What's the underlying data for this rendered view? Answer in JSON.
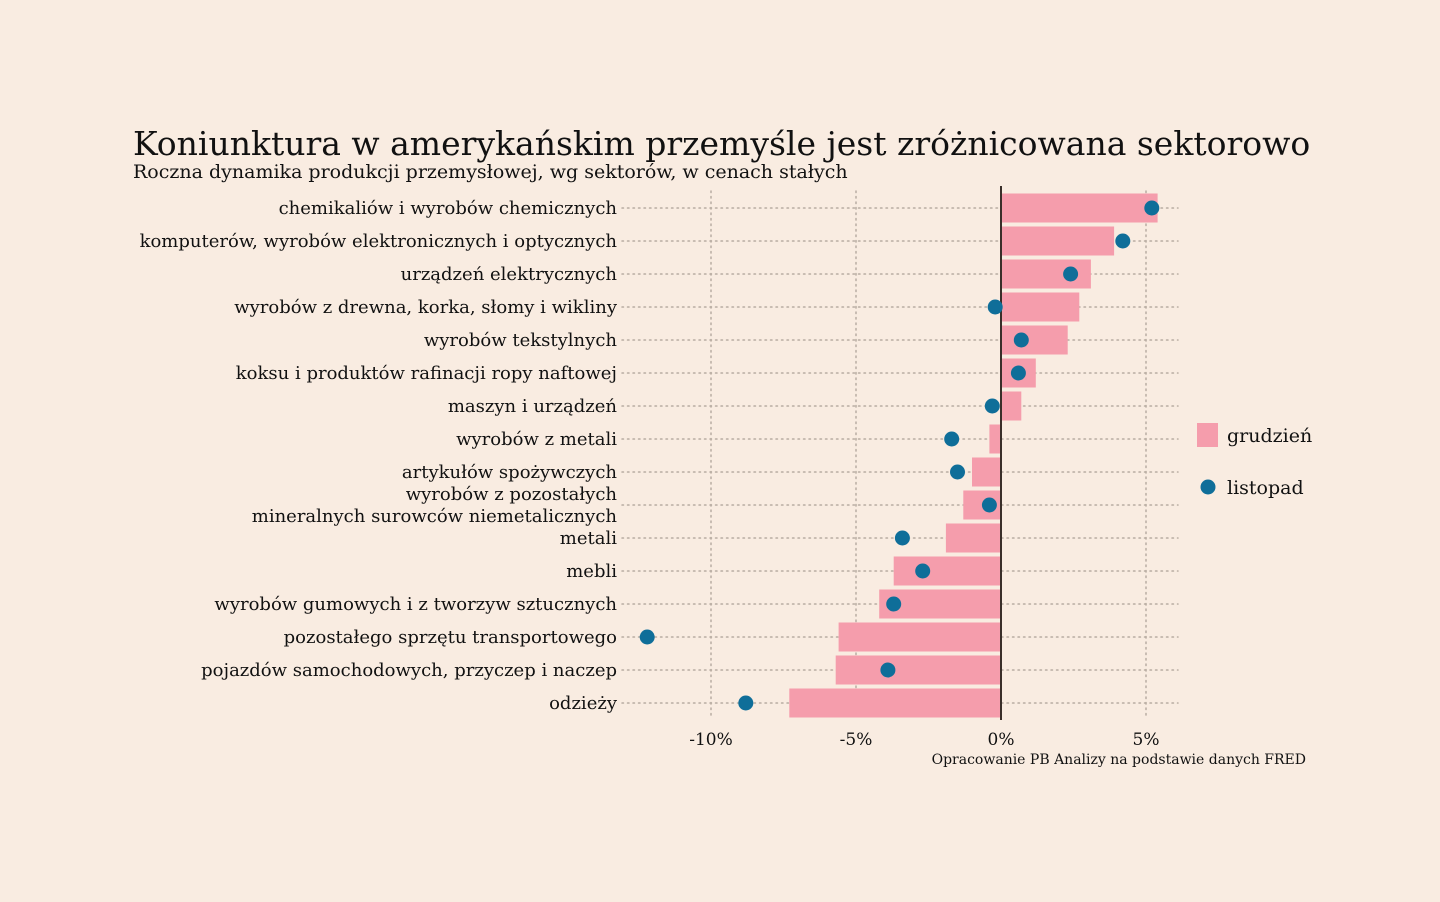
{
  "chart_data": {
    "type": "bar",
    "orientation": "horizontal",
    "title": "Koniunktura w amerykańskim przemyśle jest zróżnicowana sektorowo",
    "subtitle": "Roczna dynamika produkcji przemysłowej, wg sektorów, w cenach stałych",
    "caption": "Opracowanie PB Analizy na podstawie danych FRED",
    "categories": [
      [
        "chemikaliów i wyrobów chemicznych"
      ],
      [
        "komputerów, wyrobów elektronicznych i optycznych"
      ],
      [
        "urządzeń elektrycznych"
      ],
      [
        "wyrobów z drewna, korka, słomy i wikliny"
      ],
      [
        "wyrobów tekstylnych"
      ],
      [
        "koksu i produktów rafinacji ropy naftowej"
      ],
      [
        "maszyn i urządzeń"
      ],
      [
        "wyrobów z metali"
      ],
      [
        "artykułów spożywczych"
      ],
      [
        "wyrobów z pozostałych",
        "mineralnych surowców niemetalicznych"
      ],
      [
        "metali"
      ],
      [
        "mebli"
      ],
      [
        "wyrobów gumowych i z tworzyw sztucznych"
      ],
      [
        "pozostałego sprzętu transportowego"
      ],
      [
        "pojazdów samochodowych, przyczep i naczep"
      ],
      [
        "odzieży"
      ]
    ],
    "series": [
      {
        "name": "grudzień",
        "mark": "bar",
        "color": "#f59dac",
        "values": [
          5.4,
          3.9,
          3.1,
          2.7,
          2.3,
          1.2,
          0.7,
          -0.4,
          -1.0,
          -1.3,
          -1.9,
          -3.7,
          -4.2,
          -5.6,
          -5.7,
          -7.3
        ]
      },
      {
        "name": "listopad",
        "mark": "dot",
        "color": "#0f6e99",
        "values": [
          5.2,
          4.2,
          2.4,
          -0.2,
          0.7,
          0.6,
          -0.3,
          -1.7,
          -1.5,
          -0.4,
          -3.4,
          -2.7,
          -3.7,
          -12.2,
          -3.9,
          -8.8
        ]
      }
    ],
    "x_ticks": [
      -10,
      -5,
      0,
      5
    ],
    "x_tick_labels": [
      "-10%",
      "-5%",
      "0%",
      "5%"
    ],
    "xlim": [
      -13,
      6.2
    ],
    "grid": "vertical dotted",
    "legend_position": "right"
  }
}
